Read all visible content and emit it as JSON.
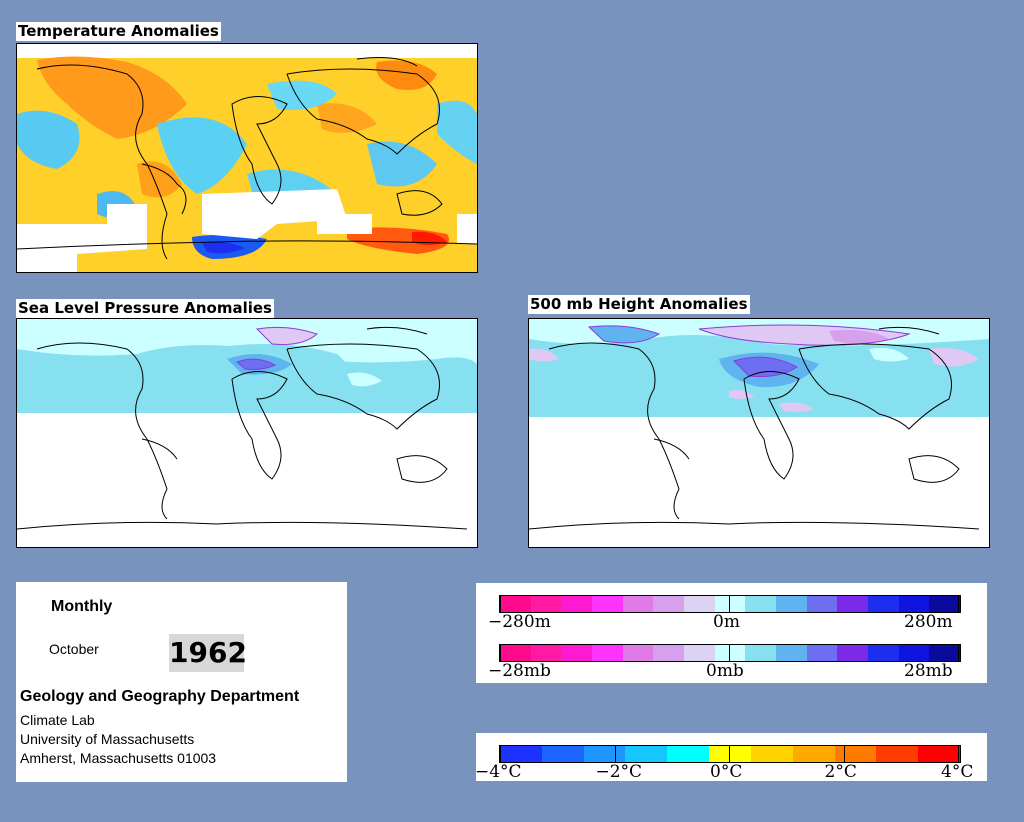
{
  "panels": {
    "temperature": {
      "title": "Temperature Anomalies"
    },
    "slp": {
      "title": "Sea Level Pressure Anomalies"
    },
    "height500": {
      "title": "500 mb Height Anomalies"
    }
  },
  "info": {
    "period": "Monthly",
    "month": "October",
    "year": "1962",
    "department": "Geology and Geography Department",
    "lab": "Climate Lab",
    "university": "University of Massachusetts",
    "address": "Amherst, Massachusetts 01003"
  },
  "legends": {
    "height": {
      "min": "−280m",
      "mid": "0m",
      "max": "280m"
    },
    "pressure": {
      "min": "−28mb",
      "mid": "0mb",
      "max": "28mb"
    },
    "temperature": {
      "labels": [
        "−4°C",
        "−2°C",
        "0°C",
        "2°C",
        "4°C"
      ]
    }
  },
  "colors": {
    "background": "#7893bd",
    "anomaly_scale_pos_neg": [
      "#ff0a8c",
      "#ff19a3",
      "#ff1ad2",
      "#ff33ff",
      "#e07ae8",
      "#d6a0ec",
      "#dcd2f4",
      "#ccffff",
      "#87e0f0",
      "#5fb4f0",
      "#6e6ef0",
      "#7a2ae8",
      "#1e2ef0",
      "#1014e0",
      "#0a0a9c"
    ],
    "temperature_scale": [
      "#1e32ff",
      "#1e64ff",
      "#1e96ff",
      "#14c8ff",
      "#00ffff",
      "#ffff00",
      "#ffd200",
      "#ffaa00",
      "#ff7a00",
      "#ff3c00",
      "#ff0000"
    ]
  }
}
